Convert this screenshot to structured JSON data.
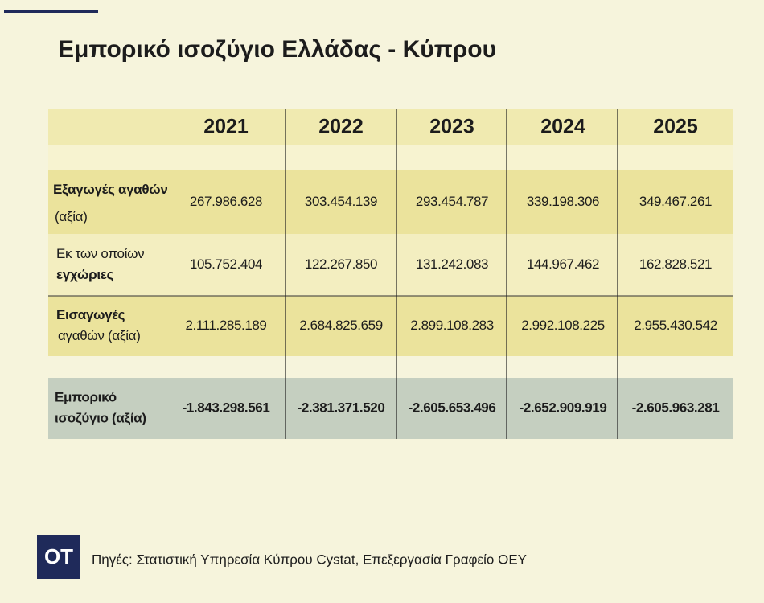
{
  "title": "Εμπορικό ισοζύγιο Ελλάδας - Κύπρου",
  "table": {
    "header": [
      "2021",
      "2022",
      "2023",
      "2024",
      "2025"
    ],
    "rows": [
      {
        "label": [
          "Εξαγωγές αγαθών",
          "(αξία)"
        ],
        "cells": [
          "267.986.628",
          "303.454.139",
          "293.454.787",
          "339.198.306",
          "349.467.261"
        ]
      },
      {
        "label": [
          "Εκ των οποίων",
          "εγχώριες"
        ],
        "cells": [
          "105.752.404",
          "122.267.850",
          "131.242.083",
          "144.967.462",
          "162.828.521"
        ]
      },
      {
        "label": [
          "Εισαγωγές",
          "αγαθών (αξία)"
        ],
        "cells": [
          "2.111.285.189",
          "2.684.825.659",
          "2.899.108.283",
          "2.992.108.225",
          "2.955.430.542"
        ]
      },
      {
        "label": [
          "Εμπορικό",
          "ισοζύγιο (αξία)"
        ],
        "cells": [
          "-1.843.298.561",
          "-2.381.371.520",
          "-2.605.653.496",
          "-2.652.909.919",
          "-2.605.963.281"
        ]
      }
    ]
  },
  "footer": {
    "logo": "OT",
    "source": "Πηγές: Στατιστική Υπηρεσία Κύπρου Cystat, Επεξεργασία Γραφείο ΟΕΥ"
  }
}
